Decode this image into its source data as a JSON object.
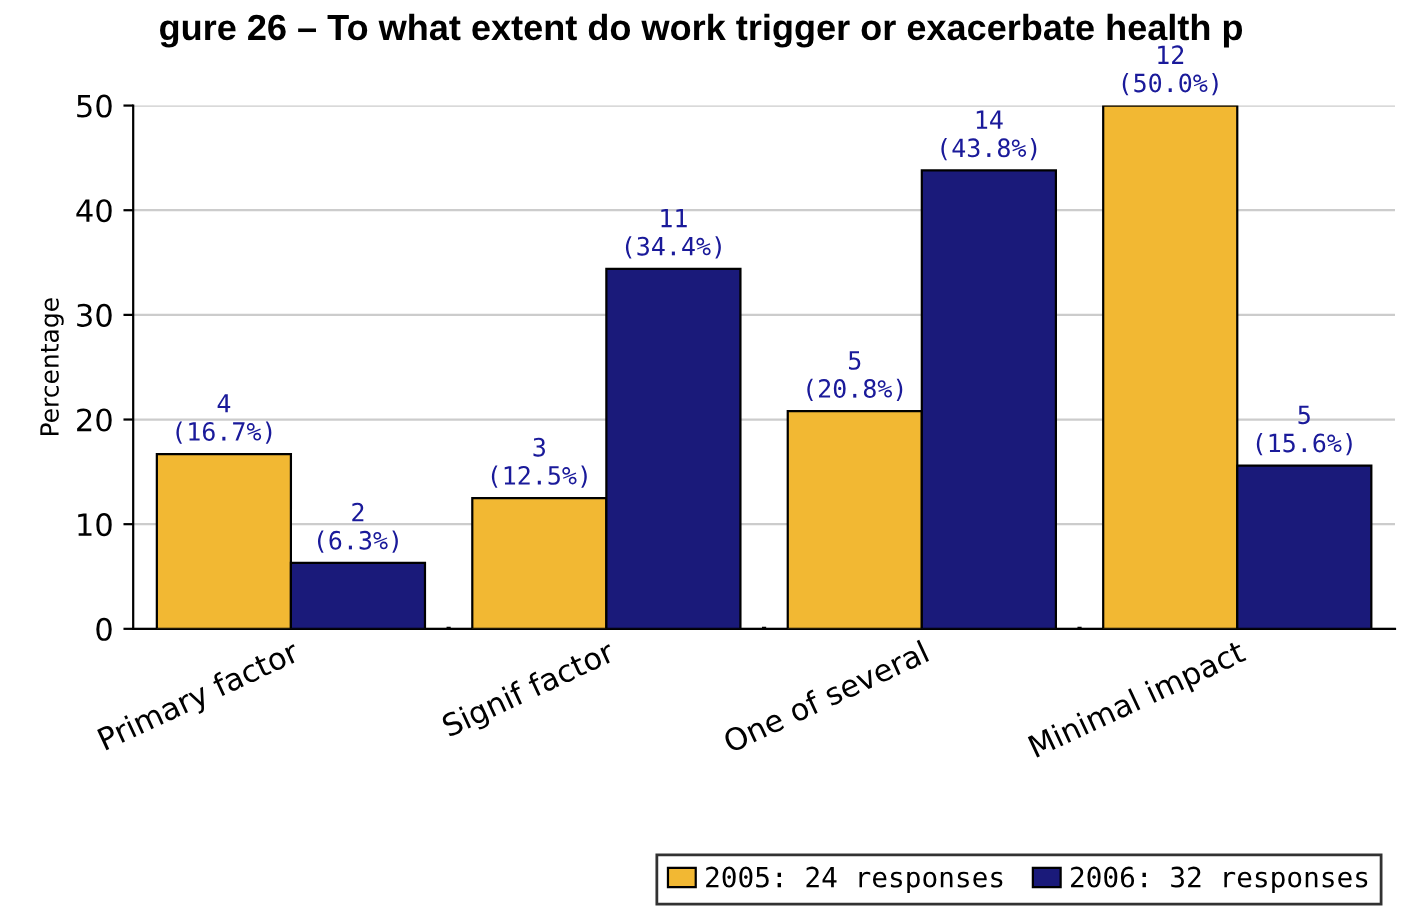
{
  "chart_data": {
    "type": "bar",
    "title": "gure 26 – To what extent do work trigger or exacerbate health p",
    "ylabel": "Percentage",
    "categories": [
      "Primary factor",
      "Signif factor",
      "One of several",
      "Minimal impact"
    ],
    "series": [
      {
        "name": "2005: 24 responses",
        "color": "#f2b833",
        "values": [
          16.7,
          12.5,
          20.8,
          50.0
        ],
        "value_labels": [
          "4\n(16.7%)",
          "3\n(12.5%)",
          "5\n(20.8%)",
          "12\n(50.0%)"
        ]
      },
      {
        "name": "2006: 32 responses",
        "color": "#1a1a7a",
        "values": [
          6.3,
          34.4,
          43.8,
          15.6
        ],
        "value_labels": [
          "2\n(6.3%)",
          "11\n(34.4%)",
          "14\n(43.8%)",
          "5\n(15.6%)"
        ]
      }
    ],
    "ylim": [
      0,
      50
    ],
    "yticks": [
      0,
      10,
      20,
      30,
      40,
      50
    ],
    "grid": "y",
    "legend": "bottom right"
  }
}
